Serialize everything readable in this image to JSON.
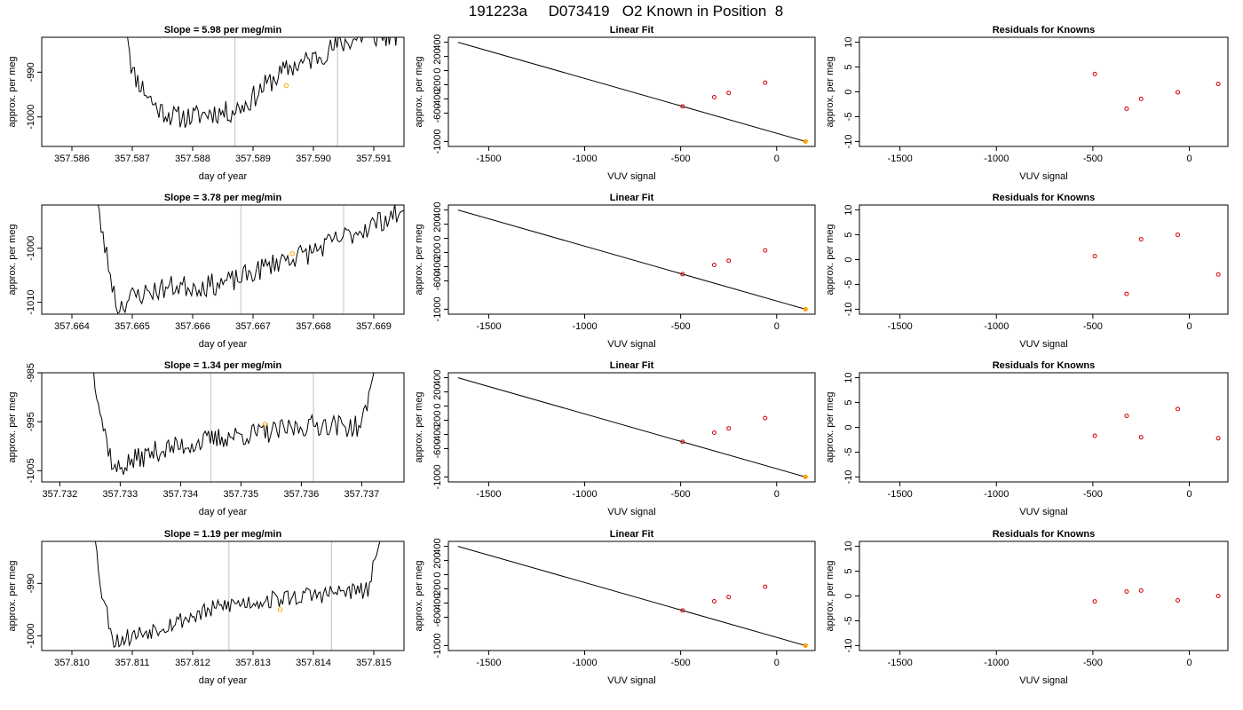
{
  "figure": {
    "title": "191223a     D073419   O2 Known in Position  8"
  },
  "colors": {
    "trace": "#000000",
    "marker_sample": "#ffa500",
    "residual_point": "#cc0000",
    "window_line": "#cccccc"
  },
  "chart_data": [
    {
      "id": "r1-trace",
      "row": 0,
      "col": 0,
      "type": "line",
      "title": "Slope =  5.98  per meg/min",
      "xlabel": "day of year",
      "ylabel": "approx. per meg",
      "xlim": [
        357.5855,
        357.5915
      ],
      "ylim": [
        -1006.6,
        -982.2
      ],
      "xticks": [
        357.586,
        357.587,
        357.588,
        357.589,
        357.59,
        357.591
      ],
      "xtick_decimals": 3,
      "yticks": [
        -1000,
        -990
      ],
      "vlines": [
        357.5887,
        357.5904
      ],
      "series": [
        {
          "kind": "trace",
          "start": 357.5869,
          "end": 357.5915,
          "seed": 11,
          "noise": 1.6,
          "knots": [
            [
              357.58685,
              -975
            ],
            [
              357.587,
              -990
            ],
            [
              357.5872,
              -994
            ],
            [
              357.5874,
              -998
            ],
            [
              357.5877,
              -1000
            ],
            [
              357.588,
              -1000
            ],
            [
              357.5883,
              -999
            ],
            [
              357.5886,
              -999
            ],
            [
              357.5889,
              -997
            ],
            [
              357.5892,
              -993
            ],
            [
              357.5896,
              -989
            ],
            [
              357.59,
              -987
            ],
            [
              357.5904,
              -984
            ],
            [
              357.5908,
              -982
            ],
            [
              357.5912,
              -982
            ],
            [
              357.5915,
              -982
            ]
          ]
        },
        {
          "kind": "marker",
          "x": 357.58955,
          "y": -993
        }
      ]
    },
    {
      "id": "r1-fit",
      "row": 0,
      "col": 1,
      "type": "line",
      "title": "Linear Fit",
      "xlabel": "VUV signal",
      "ylabel": "approx. per meg",
      "xlim": [
        -1710,
        200
      ],
      "ylim": [
        -1070,
        470
      ],
      "xticks": [
        -1500,
        -1000,
        -500,
        0
      ],
      "yticks": [
        -1000,
        -600,
        -200,
        200
      ],
      "ytick_labels": [
        {
          "v": -1000,
          "t": "-1000"
        },
        {
          "v": -600,
          "t": "-600"
        },
        {
          "v": -200,
          "t": "-200"
        },
        {
          "v": 200,
          "t": "200"
        },
        {
          "v": 400,
          "t": "400"
        },
        {
          "v": -400,
          "t": "-400"
        },
        {
          "v": 0,
          "t": "0"
        }
      ],
      "series": [
        {
          "kind": "fitline",
          "x1": -1660,
          "y1": 400,
          "x2": 150,
          "y2": -1000
        },
        {
          "kind": "points",
          "x": [
            -490,
            -325,
            -250,
            -60,
            150
          ],
          "y": [
            -505,
            -375,
            -315,
            -170,
            -1000
          ]
        }
      ]
    },
    {
      "id": "r1-resid",
      "row": 0,
      "col": 2,
      "type": "scatter",
      "title": "Residuals for Knowns",
      "xlabel": "VUV signal",
      "ylabel": "approx. per meg",
      "xlim": [
        -1710,
        200
      ],
      "ylim": [
        -11,
        11
      ],
      "xticks": [
        -1500,
        -1000,
        -500,
        0
      ],
      "yticks": [
        -10,
        -5,
        0,
        5,
        10
      ],
      "series": [
        {
          "kind": "residuals",
          "x": [
            -490,
            -325,
            -250,
            -60,
            150
          ],
          "y": [
            3.6,
            -3.4,
            -1.4,
            -0.1,
            1.6
          ]
        }
      ]
    },
    {
      "id": "r2-trace",
      "row": 1,
      "col": 0,
      "type": "line",
      "title": "Slope =  3.78  per meg/min",
      "xlabel": "day of year",
      "ylabel": "approx. per meg",
      "xlim": [
        357.6635,
        357.6695
      ],
      "ylim": [
        -1012.2,
        -992.0
      ],
      "xticks": [
        357.664,
        357.665,
        357.666,
        357.667,
        357.668,
        357.669
      ],
      "xtick_decimals": 3,
      "yticks": [
        -1010,
        -1000
      ],
      "vlines": [
        357.6668,
        357.6685
      ],
      "series": [
        {
          "kind": "trace",
          "start": 357.6643,
          "end": 357.6695,
          "seed": 23,
          "noise": 1.3,
          "knots": [
            [
              357.6643,
              -985
            ],
            [
              357.66455,
              -1000
            ],
            [
              357.66475,
              -1011
            ],
            [
              357.665,
              -1009
            ],
            [
              357.6653,
              -1008
            ],
            [
              357.6657,
              -1007
            ],
            [
              357.6662,
              -1007
            ],
            [
              357.6667,
              -1006
            ],
            [
              357.6671,
              -1004
            ],
            [
              357.6675,
              -1002
            ],
            [
              357.6679,
              -1001
            ],
            [
              357.6683,
              -999
            ],
            [
              357.6687,
              -997
            ],
            [
              357.6691,
              -995
            ],
            [
              357.6695,
              -993
            ]
          ]
        },
        {
          "kind": "marker",
          "x": 357.66765,
          "y": -1001
        }
      ]
    },
    {
      "id": "r2-fit",
      "row": 1,
      "col": 1,
      "type": "line",
      "title": "Linear Fit",
      "xlabel": "VUV signal",
      "ylabel": "approx. per meg",
      "xlim": [
        -1710,
        200
      ],
      "ylim": [
        -1070,
        470
      ],
      "xticks": [
        -1500,
        -1000,
        -500,
        0
      ],
      "yticks": [
        -1000,
        -600,
        -200,
        200
      ],
      "ytick_labels": [
        {
          "v": -1000,
          "t": "-1000"
        },
        {
          "v": -600,
          "t": "-600"
        },
        {
          "v": -200,
          "t": "-200"
        },
        {
          "v": 200,
          "t": "200"
        },
        {
          "v": 400,
          "t": "400"
        },
        {
          "v": -400,
          "t": "-400"
        },
        {
          "v": 0,
          "t": "0"
        }
      ],
      "series": [
        {
          "kind": "fitline",
          "x1": -1660,
          "y1": 400,
          "x2": 150,
          "y2": -1000
        },
        {
          "kind": "points",
          "x": [
            -490,
            -325,
            -250,
            -60,
            150
          ],
          "y": [
            -505,
            -375,
            -315,
            -170,
            -1000
          ]
        }
      ]
    },
    {
      "id": "r2-resid",
      "row": 1,
      "col": 2,
      "type": "scatter",
      "title": "Residuals for Knowns",
      "xlabel": "VUV signal",
      "ylabel": "approx. per meg",
      "xlim": [
        -1710,
        200
      ],
      "ylim": [
        -11,
        11
      ],
      "xticks": [
        -1500,
        -1000,
        -500,
        0
      ],
      "yticks": [
        -10,
        -5,
        0,
        5,
        10
      ],
      "series": [
        {
          "kind": "residuals",
          "x": [
            -490,
            -325,
            -250,
            -60,
            150
          ],
          "y": [
            0.7,
            -6.9,
            4.1,
            5.0,
            -3.0
          ]
        }
      ]
    },
    {
      "id": "r3-trace",
      "row": 2,
      "col": 0,
      "type": "line",
      "title": "Slope =  1.34  per meg/min",
      "xlabel": "day of year",
      "ylabel": "approx. per meg",
      "xlim": [
        357.7317,
        357.7377
      ],
      "ylim": [
        -1007.3,
        -985.0
      ],
      "xticks": [
        357.732,
        357.733,
        357.734,
        357.735,
        357.736,
        357.737
      ],
      "xtick_decimals": 3,
      "yticks": [
        -1005,
        -995,
        -985
      ],
      "vlines": [
        357.7345,
        357.7362
      ],
      "series": [
        {
          "kind": "trace",
          "start": 357.7325,
          "end": 357.7372,
          "seed": 37,
          "noise": 1.4,
          "knots": [
            [
              357.7325,
              -980
            ],
            [
              357.7327,
              -995
            ],
            [
              357.7329,
              -1005
            ],
            [
              357.7332,
              -1003
            ],
            [
              357.7336,
              -1001
            ],
            [
              357.734,
              -1000
            ],
            [
              357.7344,
              -999
            ],
            [
              357.7348,
              -998
            ],
            [
              357.7352,
              -997.5
            ],
            [
              357.7356,
              -997
            ],
            [
              357.736,
              -996
            ],
            [
              357.7364,
              -995.5
            ],
            [
              357.7368,
              -996
            ],
            [
              357.737,
              -996
            ],
            [
              357.7372,
              -985
            ]
          ]
        },
        {
          "kind": "marker",
          "x": 357.7354,
          "y": -995.5
        }
      ]
    },
    {
      "id": "r3-fit",
      "row": 2,
      "col": 1,
      "type": "line",
      "title": "Linear Fit",
      "xlabel": "VUV signal",
      "ylabel": "approx. per meg",
      "xlim": [
        -1710,
        200
      ],
      "ylim": [
        -1070,
        470
      ],
      "xticks": [
        -1500,
        -1000,
        -500,
        0
      ],
      "yticks": [
        -1000,
        -600,
        -200,
        200
      ],
      "ytick_labels": [
        {
          "v": -1000,
          "t": "-1000"
        },
        {
          "v": -600,
          "t": "-600"
        },
        {
          "v": -200,
          "t": "-200"
        },
        {
          "v": 200,
          "t": "200"
        },
        {
          "v": 400,
          "t": "400"
        },
        {
          "v": -400,
          "t": "-400"
        },
        {
          "v": 0,
          "t": "0"
        }
      ],
      "series": [
        {
          "kind": "fitline",
          "x1": -1660,
          "y1": 400,
          "x2": 150,
          "y2": -1000
        },
        {
          "kind": "points",
          "x": [
            -490,
            -325,
            -250,
            -60,
            150
          ],
          "y": [
            -505,
            -375,
            -315,
            -170,
            -1000
          ]
        }
      ]
    },
    {
      "id": "r3-resid",
      "row": 2,
      "col": 2,
      "type": "scatter",
      "title": "Residuals for Knowns",
      "xlabel": "VUV signal",
      "ylabel": "approx. per meg",
      "xlim": [
        -1710,
        200
      ],
      "ylim": [
        -11,
        11
      ],
      "xticks": [
        -1500,
        -1000,
        -500,
        0
      ],
      "yticks": [
        -10,
        -5,
        0,
        5,
        10
      ],
      "series": [
        {
          "kind": "residuals",
          "x": [
            -490,
            -325,
            -250,
            -60,
            150
          ],
          "y": [
            -1.7,
            2.3,
            -2.0,
            3.7,
            -2.2
          ]
        }
      ]
    },
    {
      "id": "r4-trace",
      "row": 3,
      "col": 0,
      "type": "line",
      "title": "Slope =  1.19  per meg/min",
      "xlabel": "day of year",
      "ylabel": "approx. per meg",
      "xlim": [
        357.8095,
        357.8155
      ],
      "ylim": [
        -1002.8,
        -982.0
      ],
      "xticks": [
        357.81,
        357.811,
        357.812,
        357.813,
        357.814,
        357.815
      ],
      "xtick_decimals": 3,
      "yticks": [
        -1000,
        -990
      ],
      "vlines": [
        357.8126,
        357.8143
      ],
      "series": [
        {
          "kind": "trace",
          "start": 357.8103,
          "end": 357.8151,
          "seed": 53,
          "noise": 1.1,
          "knots": [
            [
              357.8103,
              -975
            ],
            [
              357.8105,
              -992
            ],
            [
              357.8107,
              -1001
            ],
            [
              357.811,
              -1000
            ],
            [
              357.8114,
              -998.5
            ],
            [
              357.8118,
              -997
            ],
            [
              357.8122,
              -995.5
            ],
            [
              357.8126,
              -994
            ],
            [
              357.813,
              -993.5
            ],
            [
              357.8134,
              -993
            ],
            [
              357.8138,
              -992.5
            ],
            [
              357.8142,
              -992
            ],
            [
              357.8146,
              -991.5
            ],
            [
              357.8149,
              -991.5
            ],
            [
              357.8151,
              -982
            ]
          ]
        },
        {
          "kind": "marker",
          "x": 357.81345,
          "y": -995.0
        }
      ]
    },
    {
      "id": "r4-fit",
      "row": 3,
      "col": 1,
      "type": "line",
      "title": "Linear Fit",
      "xlabel": "VUV signal",
      "ylabel": "approx. per meg",
      "xlim": [
        -1710,
        200
      ],
      "ylim": [
        -1070,
        470
      ],
      "xticks": [
        -1500,
        -1000,
        -500,
        0
      ],
      "yticks": [
        -1000,
        -600,
        -200,
        200
      ],
      "ytick_labels": [
        {
          "v": -1000,
          "t": "-1000"
        },
        {
          "v": -600,
          "t": "-600"
        },
        {
          "v": -200,
          "t": "-200"
        },
        {
          "v": 200,
          "t": "200"
        },
        {
          "v": 400,
          "t": "400"
        },
        {
          "v": -400,
          "t": "-400"
        },
        {
          "v": 0,
          "t": "0"
        }
      ],
      "series": [
        {
          "kind": "fitline",
          "x1": -1660,
          "y1": 400,
          "x2": 150,
          "y2": -1000
        },
        {
          "kind": "points",
          "x": [
            -490,
            -325,
            -250,
            -60,
            150
          ],
          "y": [
            -505,
            -375,
            -315,
            -170,
            -1000
          ]
        }
      ]
    },
    {
      "id": "r4-resid",
      "row": 3,
      "col": 2,
      "type": "scatter",
      "title": "Residuals for Knowns",
      "xlabel": "VUV signal",
      "ylabel": "approx. per meg",
      "xlim": [
        -1710,
        200
      ],
      "ylim": [
        -11,
        11
      ],
      "xticks": [
        -1500,
        -1000,
        -500,
        0
      ],
      "yticks": [
        -10,
        -5,
        0,
        5,
        10
      ],
      "series": [
        {
          "kind": "residuals",
          "x": [
            -490,
            -325,
            -250,
            -60,
            150
          ],
          "y": [
            -1.1,
            0.9,
            1.1,
            -0.9,
            0.0
          ]
        }
      ]
    }
  ]
}
